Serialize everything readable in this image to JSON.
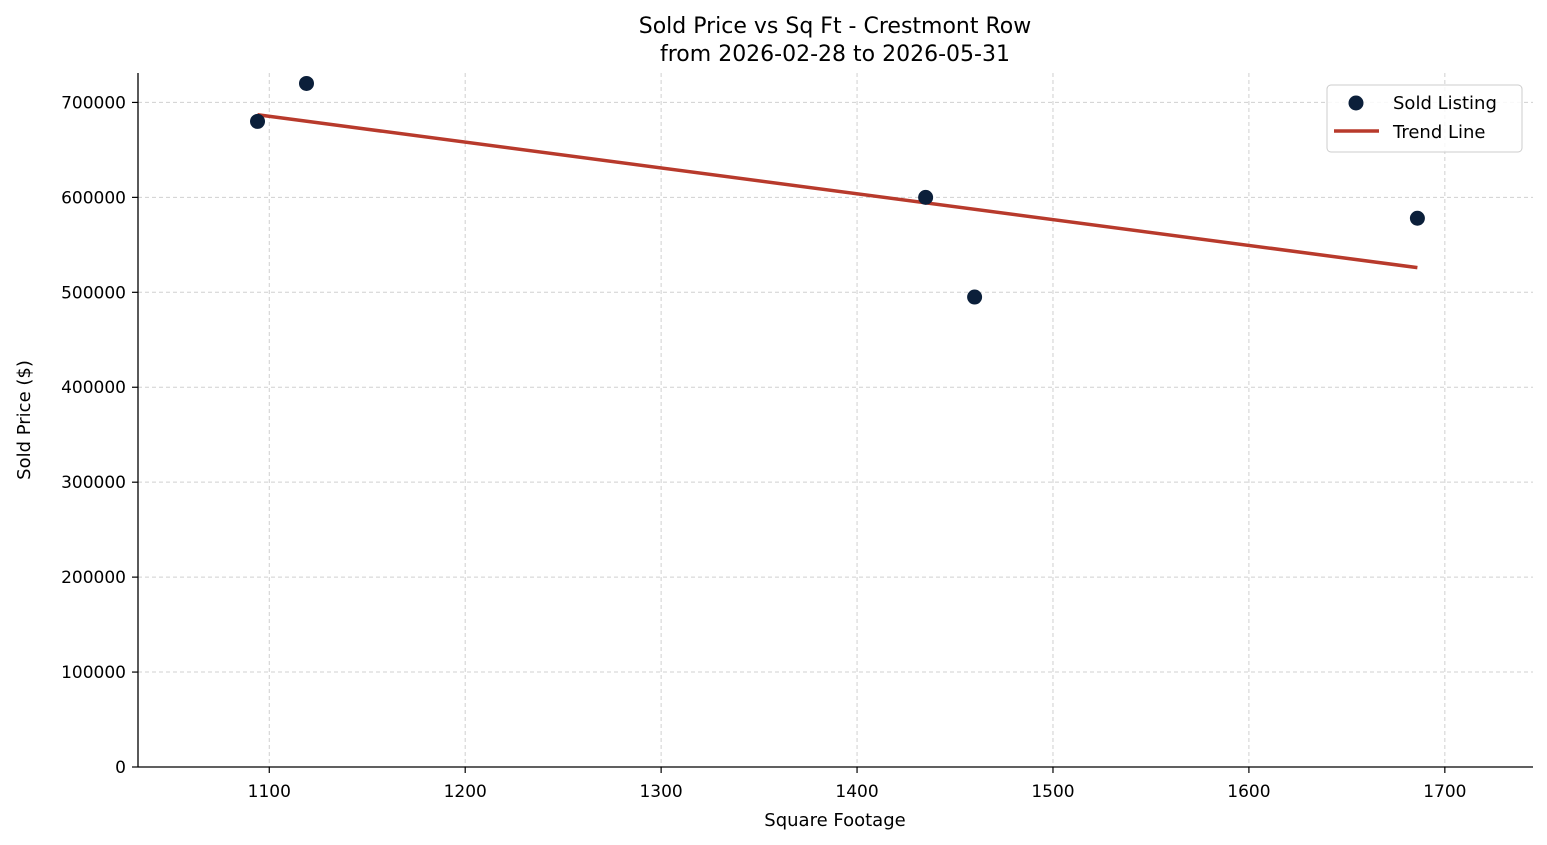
{
  "chart_data": {
    "type": "scatter",
    "title": "Sold Price vs Sq Ft - Crestmont Row",
    "subtitle": "from 2026-02-28 to 2026-05-31",
    "xlabel": "Square Footage",
    "ylabel": "Sold Price ($)",
    "xlim": [
      1033,
      1745
    ],
    "ylim": [
      0,
      731000
    ],
    "xticks": [
      1100,
      1200,
      1300,
      1400,
      1500,
      1600,
      1700
    ],
    "yticks": [
      0,
      100000,
      200000,
      300000,
      400000,
      500000,
      600000,
      700000
    ],
    "grid": true,
    "legend_position": "top-right",
    "series": [
      {
        "name": "Sold Listing",
        "kind": "scatter",
        "color": "#0b1f3a",
        "points": [
          {
            "x": 1094,
            "y": 680000
          },
          {
            "x": 1119,
            "y": 720000
          },
          {
            "x": 1435,
            "y": 600000
          },
          {
            "x": 1460,
            "y": 495000
          },
          {
            "x": 1686,
            "y": 578000
          }
        ]
      },
      {
        "name": "Trend Line",
        "kind": "line",
        "color": "#b83a2c",
        "points": [
          {
            "x": 1094,
            "y": 687000
          },
          {
            "x": 1686,
            "y": 526000
          }
        ]
      }
    ]
  }
}
